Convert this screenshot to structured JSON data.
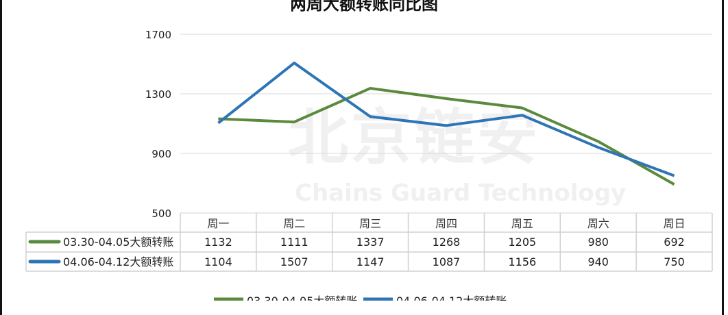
{
  "chart_data": {
    "type": "line",
    "title": "两周大额转账同比图",
    "categories": [
      "周一",
      "周二",
      "周三",
      "周四",
      "周五",
      "周六",
      "周日"
    ],
    "yticks": [
      500,
      900,
      1300,
      1700
    ],
    "ylim": [
      500,
      1700
    ],
    "grid": true,
    "legend": "bottom",
    "data_table": true,
    "series": [
      {
        "name": "03.30-04.05大额转账",
        "color": "#5B8A3C",
        "values": [
          1132,
          1111,
          1337,
          1268,
          1205,
          980,
          692
        ]
      },
      {
        "name": "04.06-04.12大额转账",
        "color": "#2E75B6",
        "values": [
          1104,
          1507,
          1147,
          1087,
          1156,
          940,
          750
        ]
      }
    ]
  },
  "watermark": {
    "cn": "北京链安",
    "en": "Chains Guard Technology"
  }
}
